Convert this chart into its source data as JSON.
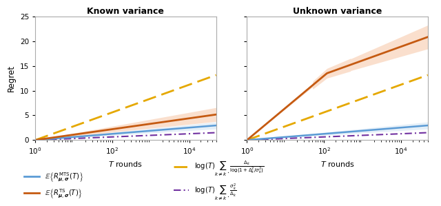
{
  "title_left": "Known variance",
  "title_right": "Unknown variance",
  "xlabel": "$T$ rounds",
  "ylabel": "Regret",
  "xlim": [
    1,
    50000
  ],
  "ylim_left": [
    0,
    25
  ],
  "ylim_right": [
    0,
    25
  ],
  "yticks": [
    0,
    5,
    10,
    15,
    20,
    25
  ],
  "xticks": [
    1,
    100,
    10000
  ],
  "xtick_labels": [
    "$10^0$",
    "$10^2$",
    "$10^4$"
  ],
  "color_blue": "#5b9bd5",
  "color_orange": "#c55a11",
  "color_yellow": "#e5a800",
  "color_purple": "#7030a0",
  "shade_blue": "#bdd7ee",
  "shade_orange": "#f4b183",
  "legend_labels": [
    "$\\mathbb{E}\\left\\{R_{\\boldsymbol{\\mu},\\boldsymbol{\\sigma}}^{\\mathrm{MTS}}(T)\\right\\}$",
    "$\\mathbb{E}\\left\\{R_{\\boldsymbol{\\mu},\\boldsymbol{\\sigma}}^{\\mathrm{TS}}(T)\\right\\}$",
    "$\\log(T)\\sum_{k\\neq k^\\star}\\frac{\\Delta_k}{\\log(1+\\Delta_k^2/\\sigma_k^2)}$",
    "$\\log(T)\\sum_{k\\neq k^\\star}\\frac{\\sigma_k^2}{\\Delta_k}$"
  ]
}
